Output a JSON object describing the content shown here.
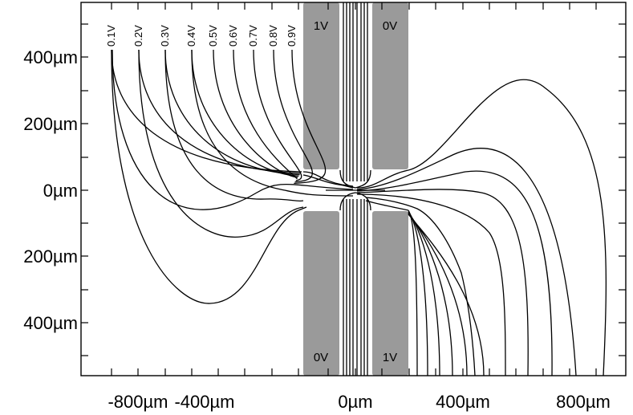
{
  "chart_data": {
    "type": "contour",
    "x_ticks": [
      "-800µm",
      "-400µm",
      "0µm",
      "400µm",
      "800µm"
    ],
    "y_ticks": [
      "400µm",
      "200µm",
      "0µm",
      "200µm",
      "400µm"
    ],
    "contour_levels": [
      "0.1V",
      "0.2V",
      "0.3V",
      "0.4V",
      "0.5V",
      "0.6V",
      "0.7V",
      "0.8V",
      "0.9V"
    ],
    "electrodes": [
      {
        "label": "1V",
        "position": "top-left"
      },
      {
        "label": "0V",
        "position": "top-right"
      },
      {
        "label": "0V",
        "position": "bottom-left"
      },
      {
        "label": "1V",
        "position": "bottom-right"
      }
    ]
  }
}
